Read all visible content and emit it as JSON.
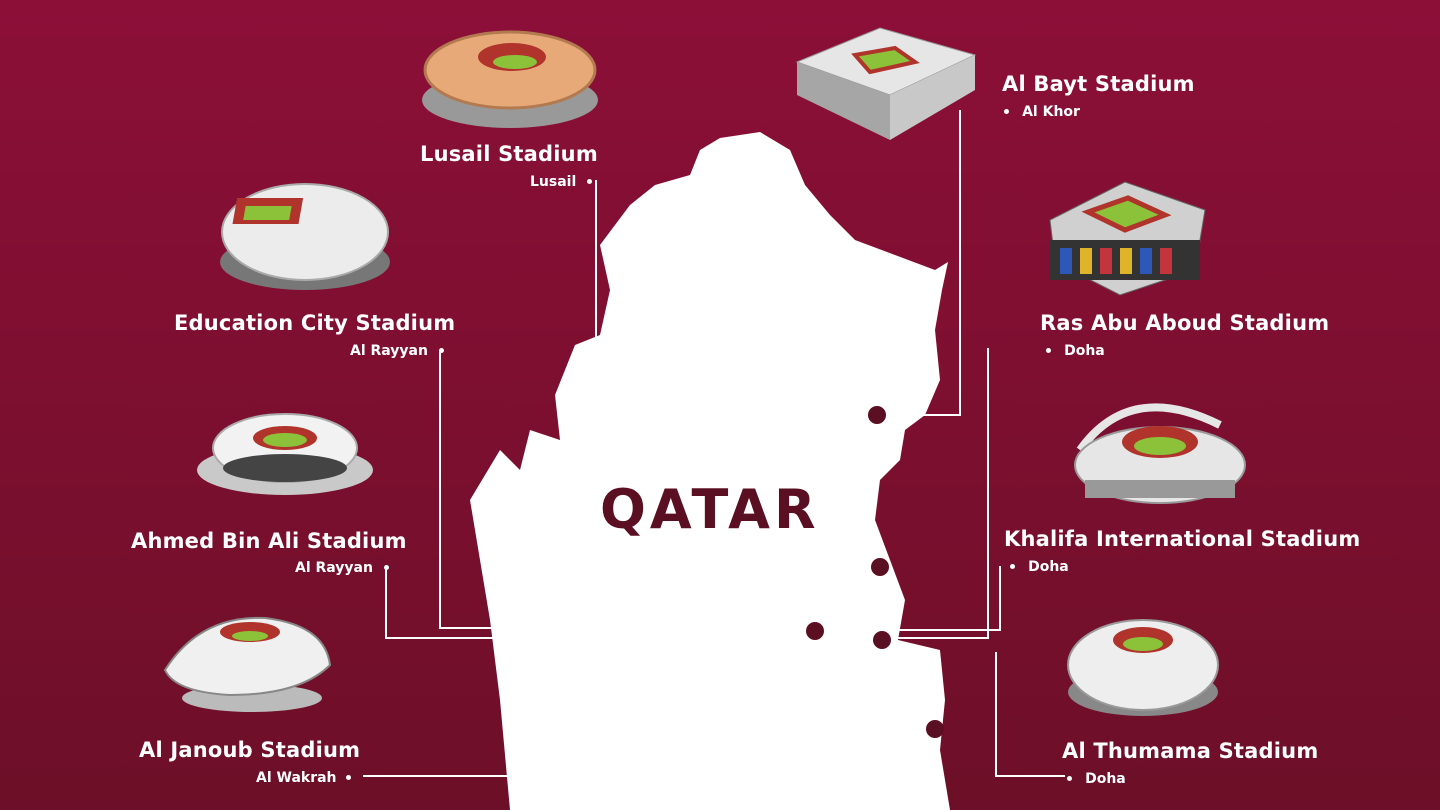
{
  "country": "QATAR",
  "colors": {
    "background_top": "#8c0f38",
    "background_bottom": "#6d0f28",
    "map": "#ffffff",
    "lines": "#ffffff",
    "markers": "#5a0f22"
  },
  "stadiums": [
    {
      "name": "Lusail Stadium",
      "city": "Lusail",
      "icon": "lusail-stadium-icon"
    },
    {
      "name": "Al Bayt Stadium",
      "city": "Al Khor",
      "icon": "al-bayt-stadium-icon"
    },
    {
      "name": "Education City Stadium",
      "city": "Al Rayyan",
      "icon": "education-city-stadium-icon"
    },
    {
      "name": "Ras Abu Aboud Stadium",
      "city": "Doha",
      "icon": "ras-abu-aboud-stadium-icon"
    },
    {
      "name": "Ahmed Bin Ali Stadium",
      "city": "Al Rayyan",
      "icon": "ahmed-bin-ali-stadium-icon"
    },
    {
      "name": "Khalifa International Stadium",
      "city": "Doha",
      "icon": "khalifa-international-stadium-icon"
    },
    {
      "name": "Al Janoub Stadium",
      "city": "Al Wakrah",
      "icon": "al-janoub-stadium-icon"
    },
    {
      "name": "Al Thumama Stadium",
      "city": "Doha",
      "icon": "al-thumama-stadium-icon"
    }
  ]
}
